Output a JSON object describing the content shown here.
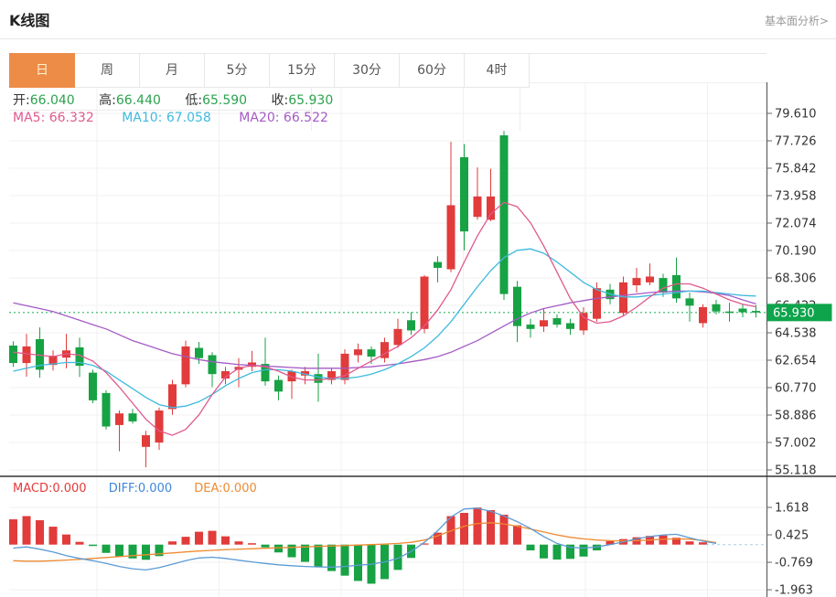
{
  "header": {
    "title": "K线图",
    "link": "基本面分析>"
  },
  "tabs": [
    {
      "label": "日",
      "active": true
    },
    {
      "label": "周",
      "active": false
    },
    {
      "label": "月",
      "active": false
    },
    {
      "label": "5分",
      "active": false
    },
    {
      "label": "15分",
      "active": false
    },
    {
      "label": "30分",
      "active": false
    },
    {
      "label": "60分",
      "active": false
    },
    {
      "label": "4时",
      "active": false
    }
  ],
  "ohlc": [
    {
      "label": "开:",
      "value": "66.040"
    },
    {
      "label": "高:",
      "value": "66.440"
    },
    {
      "label": "低:",
      "value": "65.590"
    },
    {
      "label": "收:",
      "value": "65.930"
    }
  ],
  "ma_legend": [
    {
      "label": "MA5:",
      "value": "66.332"
    },
    {
      "label": "MA10:",
      "value": "67.058"
    },
    {
      "label": "MA20:",
      "value": "66.522"
    }
  ],
  "macd_legend": [
    {
      "label": "MACD:",
      "value": "0.000"
    },
    {
      "label": "DIFF:",
      "value": "0.000"
    },
    {
      "label": "DEA:",
      "value": "0.000"
    }
  ],
  "colors": {
    "up": "#e13b3b",
    "down": "#17a244",
    "ma5": "#e0598e",
    "ma10": "#3fbadf",
    "ma20": "#a55bc6",
    "diff": "#5b9bd5",
    "dea": "#ee8b33",
    "price_line": "#2eb865",
    "price_badge": "#0ea44b",
    "tab_active": "#ed8c47",
    "grid": "#f0f0f0",
    "axis": "#666666"
  },
  "chart_data": {
    "type": "candlestick+macd",
    "title": "K线图 (daily K-line with MA5/MA10/MA20 and MACD)",
    "x_count": 57,
    "legend_position": "top-left",
    "grid": true,
    "main": {
      "y_ticks": [
        "79.610",
        "77.726",
        "75.842",
        "73.958",
        "72.074",
        "70.190",
        "68.306",
        "66.422",
        "64.538",
        "62.654",
        "60.770",
        "58.886",
        "57.002",
        "55.118"
      ],
      "current_price": "65.930",
      "candles": [
        [
          63.66,
          63.95,
          62.2,
          62.46
        ],
        [
          62.46,
          64.47,
          61.52,
          63.6
        ],
        [
          64.1,
          64.91,
          61.45,
          62.0
        ],
        [
          62.33,
          63.34,
          61.95,
          62.96
        ],
        [
          62.83,
          64.47,
          62.1,
          63.33
        ],
        [
          63.54,
          64.2,
          61.5,
          62.27
        ],
        [
          61.8,
          62.0,
          59.7,
          59.9
        ],
        [
          60.4,
          60.6,
          57.9,
          58.1
        ],
        [
          58.2,
          59.2,
          56.4,
          59.0
        ],
        [
          59.0,
          59.3,
          58.3,
          58.45
        ],
        [
          56.7,
          57.8,
          55.3,
          57.5
        ],
        [
          57.0,
          59.4,
          56.5,
          59.2
        ],
        [
          59.3,
          61.3,
          58.9,
          61.0
        ],
        [
          61.0,
          64.0,
          60.8,
          63.6
        ],
        [
          63.5,
          63.9,
          62.4,
          62.8
        ],
        [
          63.0,
          63.2,
          60.8,
          61.7
        ],
        [
          61.4,
          62.2,
          61.0,
          61.9
        ],
        [
          62.0,
          62.8,
          60.8,
          62.2
        ],
        [
          62.2,
          63.3,
          61.9,
          62.5
        ],
        [
          62.4,
          64.2,
          60.9,
          61.2
        ],
        [
          61.3,
          61.6,
          59.9,
          60.5
        ],
        [
          61.2,
          62.0,
          60.0,
          61.9
        ],
        [
          61.6,
          62.2,
          61.0,
          61.9
        ],
        [
          61.7,
          63.1,
          59.8,
          61.1
        ],
        [
          61.3,
          62.1,
          61.0,
          61.9
        ],
        [
          61.3,
          63.4,
          61.0,
          63.1
        ],
        [
          63.0,
          63.8,
          62.5,
          63.4
        ],
        [
          63.4,
          63.6,
          62.4,
          62.9
        ],
        [
          62.8,
          64.2,
          62.5,
          63.9
        ],
        [
          63.7,
          65.5,
          63.5,
          64.8
        ],
        [
          65.4,
          65.95,
          64.4,
          64.7
        ],
        [
          64.8,
          68.5,
          64.5,
          68.4
        ],
        [
          69.4,
          69.8,
          68.0,
          69.0
        ],
        [
          68.9,
          77.66,
          68.7,
          73.3
        ],
        [
          76.6,
          77.5,
          70.2,
          71.5
        ],
        [
          72.5,
          75.9,
          72.3,
          73.9
        ],
        [
          72.3,
          75.8,
          72.2,
          73.9
        ],
        [
          78.1,
          78.4,
          66.8,
          67.2
        ],
        [
          67.7,
          68.1,
          63.9,
          65.0
        ],
        [
          65.1,
          65.5,
          64.2,
          64.8
        ],
        [
          64.97,
          66.2,
          64.6,
          65.4
        ],
        [
          65.54,
          65.8,
          64.9,
          65.1
        ],
        [
          65.2,
          65.5,
          64.4,
          64.8
        ],
        [
          64.7,
          66.3,
          64.4,
          65.9
        ],
        [
          65.5,
          68.0,
          65.3,
          67.6
        ],
        [
          67.5,
          67.9,
          66.5,
          66.85
        ],
        [
          65.9,
          68.4,
          65.7,
          68.0
        ],
        [
          67.8,
          69.0,
          67.3,
          68.3
        ],
        [
          68.0,
          69.3,
          67.8,
          68.4
        ],
        [
          68.3,
          68.6,
          67.0,
          67.3
        ],
        [
          68.5,
          69.7,
          66.6,
          66.9
        ],
        [
          66.9,
          67.3,
          65.3,
          66.4
        ],
        [
          65.2,
          66.5,
          64.9,
          66.3
        ],
        [
          66.5,
          66.8,
          65.8,
          66.0
        ],
        [
          66.0,
          66.6,
          65.3,
          65.9
        ],
        [
          66.2,
          66.5,
          65.6,
          65.95
        ],
        [
          66.04,
          66.44,
          65.59,
          65.93
        ]
      ],
      "ma5": [
        63.2,
        63.1,
        63.0,
        62.9,
        63.1,
        63.0,
        62.6,
        61.8,
        60.8,
        59.7,
        58.6,
        57.8,
        57.5,
        57.9,
        58.9,
        60.3,
        61.5,
        62.1,
        62.3,
        62.2,
        61.9,
        61.5,
        61.3,
        61.3,
        61.4,
        61.6,
        62.1,
        62.6,
        63.1,
        63.6,
        64.2,
        65.0,
        66.1,
        67.5,
        69.4,
        71.2,
        72.7,
        73.5,
        73.2,
        72.1,
        70.5,
        68.7,
        66.9,
        65.6,
        65.2,
        65.3,
        65.7,
        66.3,
        67.0,
        67.6,
        67.9,
        67.9,
        67.6,
        67.2,
        66.8,
        66.5,
        66.33
      ],
      "ma10": [
        61.9,
        62.1,
        62.3,
        62.4,
        62.5,
        62.5,
        62.3,
        61.9,
        61.3,
        60.7,
        60.1,
        59.6,
        59.4,
        59.5,
        59.8,
        60.3,
        60.9,
        61.4,
        61.8,
        62.0,
        62.0,
        61.9,
        61.7,
        61.5,
        61.4,
        61.4,
        61.5,
        61.7,
        62.0,
        62.4,
        62.9,
        63.5,
        64.3,
        65.3,
        66.5,
        67.7,
        68.8,
        69.7,
        70.2,
        70.3,
        70.0,
        69.4,
        68.7,
        68.0,
        67.5,
        67.2,
        67.0,
        67.0,
        67.1,
        67.2,
        67.3,
        67.4,
        67.4,
        67.3,
        67.2,
        67.1,
        67.06
      ],
      "ma20": [
        66.6,
        66.4,
        66.2,
        66.0,
        65.7,
        65.4,
        65.1,
        64.8,
        64.4,
        64.0,
        63.7,
        63.4,
        63.1,
        62.9,
        62.7,
        62.55,
        62.45,
        62.35,
        62.3,
        62.25,
        62.2,
        62.15,
        62.1,
        62.1,
        62.1,
        62.1,
        62.15,
        62.2,
        62.3,
        62.4,
        62.55,
        62.7,
        62.9,
        63.2,
        63.6,
        64.0,
        64.5,
        65.0,
        65.5,
        65.9,
        66.2,
        66.4,
        66.6,
        66.75,
        66.9,
        67.0,
        67.1,
        67.2,
        67.3,
        67.35,
        67.4,
        67.4,
        67.35,
        67.25,
        67.1,
        66.8,
        66.52
      ]
    },
    "macd": {
      "y_ticks": [
        "1.618",
        "0.425",
        "-0.769",
        "-1.963"
      ],
      "bars": [
        1.1,
        1.24,
        1.06,
        0.78,
        0.44,
        0.12,
        -0.06,
        -0.36,
        -0.52,
        -0.6,
        -0.66,
        -0.5,
        0.14,
        0.34,
        0.56,
        0.6,
        0.36,
        0.14,
        0.06,
        -0.12,
        -0.34,
        -0.55,
        -0.75,
        -0.95,
        -1.15,
        -1.35,
        -1.58,
        -1.7,
        -1.5,
        -1.1,
        -0.58,
        0.05,
        0.52,
        1.24,
        1.38,
        1.61,
        1.5,
        1.3,
        0.84,
        -0.25,
        -0.6,
        -0.65,
        -0.62,
        -0.52,
        -0.25,
        0.15,
        0.24,
        0.32,
        0.38,
        0.4,
        0.3,
        0.14,
        0.1,
        0.0,
        0.0,
        0.0,
        0.0
      ],
      "diff": [
        -0.15,
        -0.1,
        -0.2,
        -0.32,
        -0.48,
        -0.6,
        -0.7,
        -0.82,
        -0.95,
        -1.05,
        -1.1,
        -1.0,
        -0.85,
        -0.7,
        -0.58,
        -0.55,
        -0.6,
        -0.68,
        -0.75,
        -0.82,
        -0.88,
        -0.92,
        -0.95,
        -0.97,
        -0.98,
        -0.95,
        -0.9,
        -0.85,
        -0.75,
        -0.6,
        -0.3,
        0.1,
        0.6,
        1.2,
        1.55,
        1.58,
        1.45,
        1.25,
        1.0,
        0.7,
        0.35,
        0.05,
        -0.12,
        -0.15,
        -0.1,
        0.0,
        0.12,
        0.25,
        0.35,
        0.42,
        0.45,
        0.3,
        0.15,
        0.05,
        0.0,
        0.0,
        0.0
      ],
      "dea": [
        -0.7,
        -0.72,
        -0.72,
        -0.7,
        -0.67,
        -0.64,
        -0.6,
        -0.56,
        -0.52,
        -0.48,
        -0.44,
        -0.4,
        -0.36,
        -0.32,
        -0.28,
        -0.25,
        -0.22,
        -0.2,
        -0.18,
        -0.16,
        -0.14,
        -0.12,
        -0.1,
        -0.08,
        -0.06,
        -0.04,
        -0.02,
        0.0,
        0.02,
        0.05,
        0.1,
        0.2,
        0.38,
        0.6,
        0.8,
        0.92,
        0.95,
        0.9,
        0.8,
        0.68,
        0.55,
        0.42,
        0.32,
        0.25,
        0.2,
        0.17,
        0.16,
        0.17,
        0.2,
        0.23,
        0.25,
        0.24,
        0.18,
        0.08,
        0.02,
        0.0,
        0.0
      ]
    }
  }
}
